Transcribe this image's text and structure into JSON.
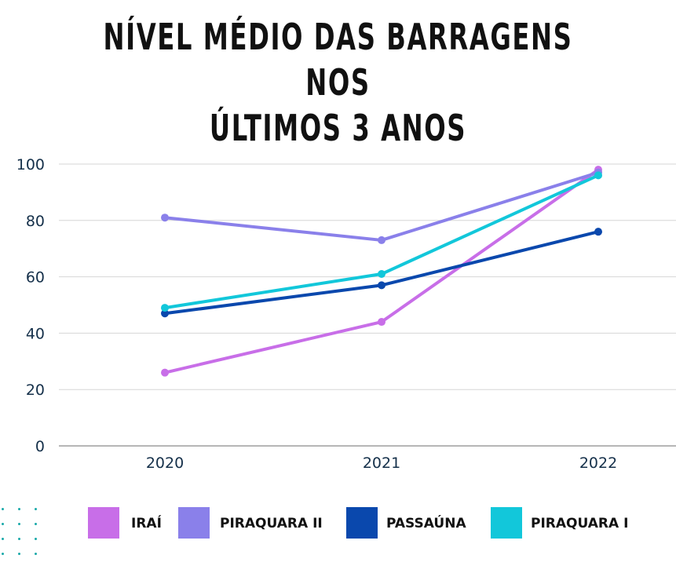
{
  "title": {
    "line1": "NÍVEL MÉDIO DAS BARRAGENS NOS",
    "line2": "ÚLTIMOS 3 ANOS"
  },
  "chart_data": {
    "type": "line",
    "x": [
      "2020",
      "2021",
      "2022"
    ],
    "ylim": [
      0,
      100
    ],
    "yticks": [
      0,
      20,
      40,
      60,
      80,
      100
    ],
    "grid": true,
    "legend_position": "bottom",
    "series": [
      {
        "name": "IRAÍ",
        "color": "#c86ee8",
        "values": [
          26,
          44,
          98
        ]
      },
      {
        "name": "PIRAQUARA II",
        "color": "#8a80ea",
        "values": [
          81,
          73,
          97
        ]
      },
      {
        "name": "PASSAÚNA",
        "color": "#0a48ad",
        "values": [
          47,
          57,
          76
        ]
      },
      {
        "name": "PIRAQUARA I",
        "color": "#12c7da",
        "values": [
          49,
          61,
          96
        ]
      }
    ]
  },
  "decoration": {
    "dot_color": "#1aa9a9"
  }
}
